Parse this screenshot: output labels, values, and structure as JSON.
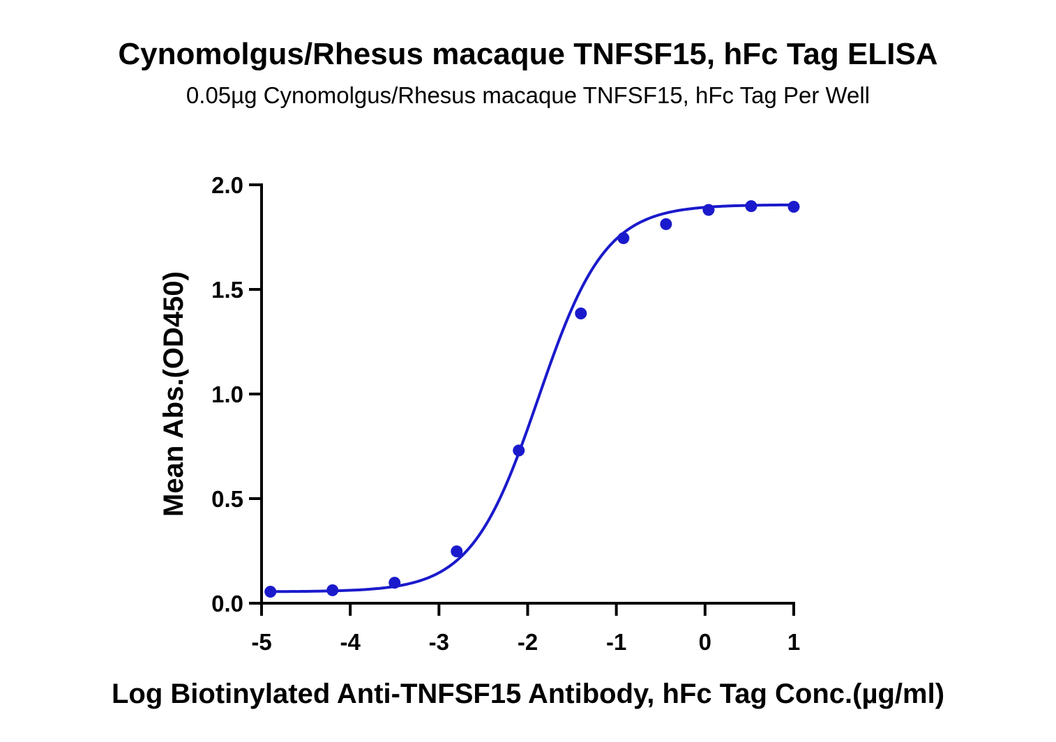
{
  "title": "Cynomolgus/Rhesus macaque TNFSF15, hFc Tag ELISA",
  "subtitle": "0.05µg Cynomolgus/Rhesus macaque TNFSF15, hFc Tag Per Well",
  "colors": {
    "series": "#1a1acc",
    "axis": "#000000",
    "background": "#ffffff"
  },
  "chart_data": {
    "type": "scatter",
    "title": "Cynomolgus/Rhesus macaque TNFSF15, hFc Tag ELISA",
    "subtitle": "0.05µg Cynomolgus/Rhesus macaque TNFSF15, hFc Tag Per Well",
    "xlabel": "Log Biotinylated Anti-TNFSF15 Antibody, hFc Tag Conc.(µg/ml)",
    "ylabel": "Mean Abs.(OD450)",
    "xlim": [
      -5,
      1
    ],
    "ylim": [
      0,
      2
    ],
    "xticks": [
      -5,
      -4,
      -3,
      -2,
      -1,
      0,
      1
    ],
    "xtick_labels": [
      "-5",
      "-4",
      "-3",
      "-2",
      "-1",
      "0",
      "1"
    ],
    "yticks": [
      0,
      0.5,
      1,
      1.5,
      2
    ],
    "ytick_labels": [
      "0.0",
      "0.5",
      "1.0",
      "1.5",
      "2.0"
    ],
    "grid": false,
    "legend": "none",
    "series": [
      {
        "points": [
          {
            "x": -4.9,
            "y": 0.055
          },
          {
            "x": -4.2,
            "y": 0.062
          },
          {
            "x": -3.5,
            "y": 0.098
          },
          {
            "x": -2.8,
            "y": 0.248
          },
          {
            "x": -2.1,
            "y": 0.73
          },
          {
            "x": -1.4,
            "y": 1.385
          },
          {
            "x": -0.92,
            "y": 1.745
          },
          {
            "x": -0.44,
            "y": 1.812
          },
          {
            "x": 0.04,
            "y": 1.88
          },
          {
            "x": 0.52,
            "y": 1.898
          },
          {
            "x": 1.0,
            "y": 1.895
          }
        ],
        "fit": {
          "model": "4PL",
          "bottom": 0.055,
          "top": 1.905,
          "logEC50": -1.88,
          "hill": 1.15
        }
      }
    ]
  }
}
